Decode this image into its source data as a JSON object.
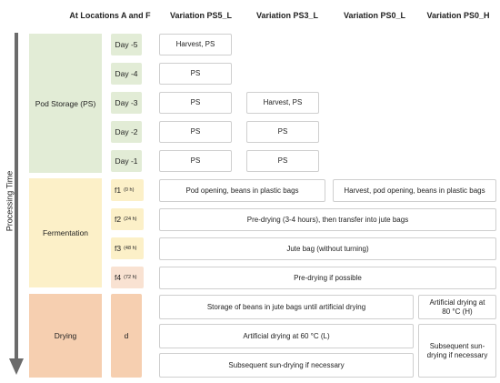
{
  "headers": {
    "locations": "At Locations A and F",
    "v1": "Variation PS5_L",
    "v2": "Variation PS3_L",
    "v3": "Variation PS0_L",
    "v4": "Variation PS0_H"
  },
  "axis_label": "Processing Time",
  "phases": {
    "storage": "Pod Storage (PS)",
    "fermentation": "Fermentation",
    "drying": "Drying"
  },
  "days": {
    "d5": "Day -5",
    "d4": "Day -4",
    "d3": "Day -3",
    "d2": "Day -2",
    "d1": "Day -1",
    "f1": "f1",
    "f1h": "(0 h)",
    "f2": "f2",
    "f2h": "(24 h)",
    "f3": "f3",
    "f3h": "(48 h)",
    "f4": "f4",
    "f4h": "(72 h)",
    "d": "d"
  },
  "cells": {
    "v1_d5": "Harvest, PS",
    "v1_d4": "PS",
    "v1_d3": "PS",
    "v1_d2": "PS",
    "v1_d1": "PS",
    "v2_d3": "Harvest, PS",
    "v2_d2": "PS",
    "v2_d1": "PS",
    "f1_left": "Pod opening, beans in plastic bags",
    "f1_right": "Harvest, pod opening, beans in plastic bags",
    "f2": "Pre-drying (3-4 hours), then transfer into jute bags",
    "f3": "Jute bag (without turning)",
    "f4": "Pre-drying if possible",
    "dry_storage": "Storage of beans in jute bags until artificial drying",
    "dry_artificial_h": "Artificial drying at 80 °C (H)",
    "dry_artificial_l": "Artificial drying at 60 °C (L)",
    "dry_sun_h": "Subsequent sun-drying if necessary",
    "dry_sun_l": "Subsequent sun-drying if necessary"
  },
  "colors": {
    "storage": "#e2ecd6",
    "fermentation": "#fcf0c8",
    "drying": "#f6cfb0",
    "arrow": "#6b6b6b"
  }
}
